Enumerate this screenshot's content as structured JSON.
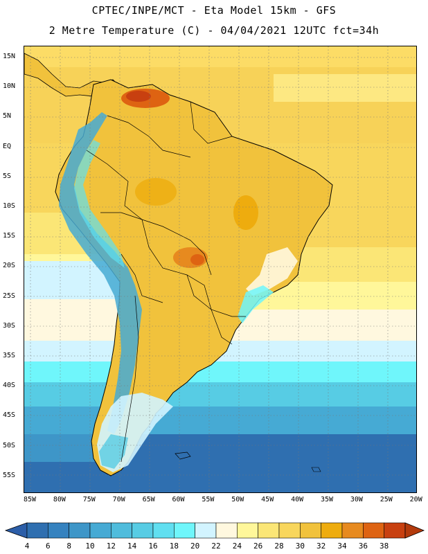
{
  "header": {
    "line1": "CPTEC/INPE/MCT -  Eta Model 15km - GFS",
    "line2": "2 Metre Temperature (C) - 04/04/2021 12UTC fct=34h"
  },
  "map": {
    "lat_labels": [
      "15N",
      "10N",
      "5N",
      "EQ",
      "5S",
      "10S",
      "15S",
      "20S",
      "25S",
      "30S",
      "35S",
      "40S",
      "45S",
      "50S",
      "55S"
    ],
    "lon_labels": [
      "85W",
      "80W",
      "75W",
      "70W",
      "65W",
      "60W",
      "55W",
      "50W",
      "45W",
      "40W",
      "35W",
      "30W",
      "25W",
      "20W"
    ]
  },
  "colorbar": {
    "labels": [
      "4",
      "6",
      "8",
      "10",
      "12",
      "14",
      "16",
      "18",
      "20",
      "22",
      "24",
      "26",
      "28",
      "30",
      "32",
      "34",
      "36",
      "38"
    ],
    "colors": [
      "#2f6fb0",
      "#3582bf",
      "#3e96c8",
      "#46aad4",
      "#4fbcdc",
      "#57cce4",
      "#60dff0",
      "#6ff6fb",
      "#d2f4ff",
      "#fff8df",
      "#fff79a",
      "#fbe676",
      "#f8d65c",
      "#f1c23c",
      "#eeac0e",
      "#e78a1f",
      "#de6312",
      "#c84010"
    ],
    "under_color": "#2c5ea8",
    "over_color": "#b33a0c"
  }
}
